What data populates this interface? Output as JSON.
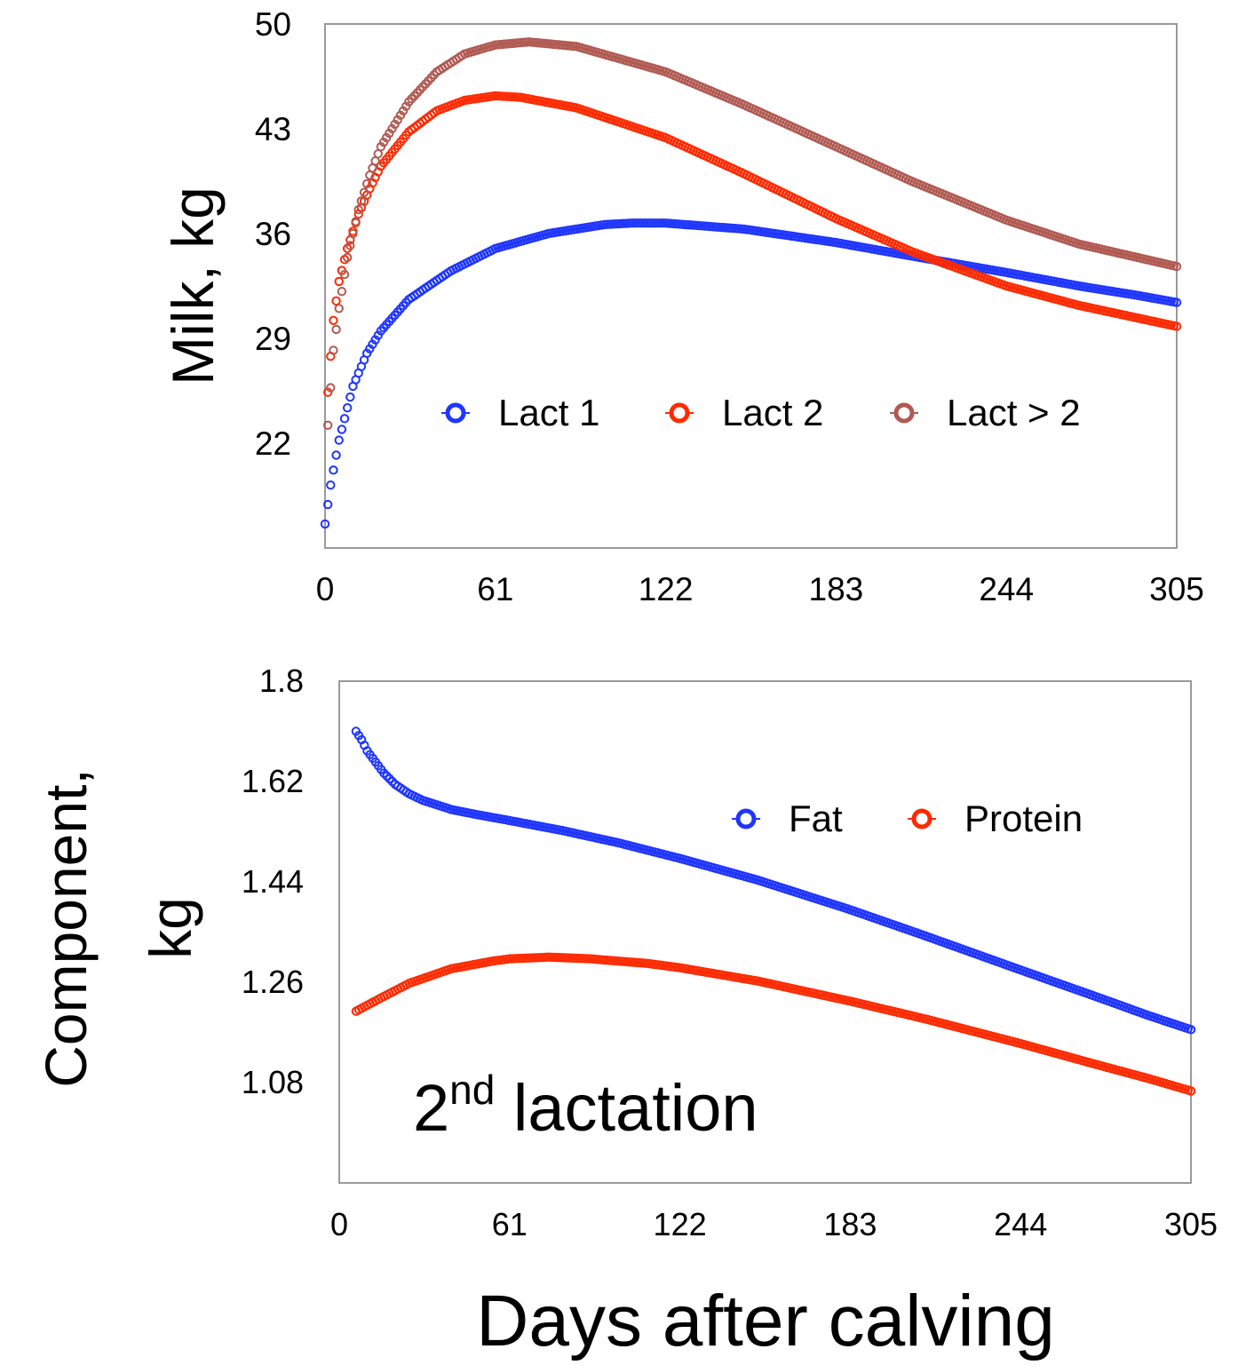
{
  "figure": {
    "xlabel": "Days after calving"
  },
  "chart_data": [
    {
      "type": "scatter",
      "title": "",
      "xlabel": "",
      "ylabel": "Milk, kg",
      "xlim": [
        0,
        305
      ],
      "ylim": [
        15,
        50
      ],
      "xticks": [
        "0",
        "61",
        "122",
        "183",
        "244",
        "305"
      ],
      "yticks": [
        "22",
        "29",
        "36",
        "43",
        "50"
      ],
      "legend_position": "center",
      "series": [
        {
          "name": "Lact 1",
          "color": "#1f35ff",
          "points": [
            [
              0,
              16.6
            ],
            [
              2,
              19.2
            ],
            [
              5,
              22.2
            ],
            [
              10,
              25.8
            ],
            [
              15,
              28.0
            ],
            [
              20,
              29.5
            ],
            [
              30,
              31.6
            ],
            [
              45,
              33.5
            ],
            [
              61,
              35.0
            ],
            [
              80,
              36.0
            ],
            [
              100,
              36.6
            ],
            [
              110,
              36.7
            ],
            [
              122,
              36.7
            ],
            [
              150,
              36.3
            ],
            [
              183,
              35.4
            ],
            [
              210,
              34.5
            ],
            [
              244,
              33.4
            ],
            [
              270,
              32.5
            ],
            [
              290,
              31.9
            ],
            [
              305,
              31.4
            ]
          ]
        },
        {
          "name": "Lact 2",
          "color": "#ff2a00",
          "points": [
            [
              1,
              25.4
            ],
            [
              3,
              30.2
            ],
            [
              5,
              32.8
            ],
            [
              8,
              35.0
            ],
            [
              12,
              37.3
            ],
            [
              16,
              39.0
            ],
            [
              20,
              40.5
            ],
            [
              30,
              42.8
            ],
            [
              40,
              44.2
            ],
            [
              50,
              44.9
            ],
            [
              61,
              45.2
            ],
            [
              70,
              45.1
            ],
            [
              90,
              44.4
            ],
            [
              122,
              42.4
            ],
            [
              150,
              40.0
            ],
            [
              183,
              37.0
            ],
            [
              210,
              34.8
            ],
            [
              244,
              32.5
            ],
            [
              270,
              31.2
            ],
            [
              305,
              29.8
            ]
          ]
        },
        {
          "name": "Lact > 2",
          "color": "#b05a52",
          "points": [
            [
              1,
              23.2
            ],
            [
              3,
              28.2
            ],
            [
              5,
              31.0
            ],
            [
              8,
              34.4
            ],
            [
              12,
              37.6
            ],
            [
              16,
              39.9
            ],
            [
              20,
              41.8
            ],
            [
              30,
              44.8
            ],
            [
              40,
              46.8
            ],
            [
              50,
              48.0
            ],
            [
              61,
              48.6
            ],
            [
              73,
              48.8
            ],
            [
              90,
              48.5
            ],
            [
              122,
              46.8
            ],
            [
              150,
              44.6
            ],
            [
              183,
              41.8
            ],
            [
              210,
              39.5
            ],
            [
              244,
              36.9
            ],
            [
              270,
              35.3
            ],
            [
              305,
              33.8
            ]
          ]
        }
      ]
    },
    {
      "type": "scatter",
      "title": "",
      "xlabel": "",
      "ylabel": "Component, kg",
      "xlim": [
        0,
        305
      ],
      "ylim": [
        0.9,
        1.8
      ],
      "xticks": [
        "0",
        "61",
        "122",
        "183",
        "244",
        "305"
      ],
      "yticks": [
        "1.08",
        "1.26",
        "1.44",
        "1.62",
        "1.8"
      ],
      "legend_position": "top-right",
      "annotation": {
        "base": "2",
        "superscript": "nd",
        "text": " lactation"
      },
      "series": [
        {
          "name": "Fat",
          "color": "#1f35ff",
          "points": [
            [
              6,
              1.71
            ],
            [
              8,
              1.695
            ],
            [
              10,
              1.675
            ],
            [
              13,
              1.655
            ],
            [
              16,
              1.635
            ],
            [
              20,
              1.615
            ],
            [
              25,
              1.598
            ],
            [
              30,
              1.586
            ],
            [
              40,
              1.57
            ],
            [
              50,
              1.56
            ],
            [
              61,
              1.55
            ],
            [
              80,
              1.532
            ],
            [
              100,
              1.51
            ],
            [
              122,
              1.482
            ],
            [
              150,
              1.443
            ],
            [
              183,
              1.39
            ],
            [
              210,
              1.343
            ],
            [
              244,
              1.282
            ],
            [
              270,
              1.236
            ],
            [
              290,
              1.2
            ],
            [
              305,
              1.175
            ]
          ]
        },
        {
          "name": "Protein",
          "color": "#ff2a00",
          "points": [
            [
              6,
              1.208
            ],
            [
              15,
              1.232
            ],
            [
              25,
              1.258
            ],
            [
              40,
              1.284
            ],
            [
              55,
              1.298
            ],
            [
              61,
              1.302
            ],
            [
              75,
              1.305
            ],
            [
              90,
              1.302
            ],
            [
              110,
              1.294
            ],
            [
              122,
              1.286
            ],
            [
              150,
              1.262
            ],
            [
              183,
              1.226
            ],
            [
              210,
              1.194
            ],
            [
              244,
              1.15
            ],
            [
              270,
              1.114
            ],
            [
              290,
              1.087
            ],
            [
              305,
              1.065
            ]
          ]
        }
      ]
    }
  ]
}
